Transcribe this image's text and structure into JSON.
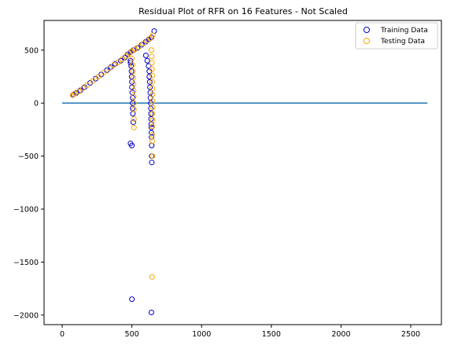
{
  "chart_data": {
    "type": "scatter",
    "title": "Residual Plot of RFR on 16 Features - Not Scaled",
    "xlabel": "",
    "ylabel": "",
    "xlim": [
      -130,
      2720
    ],
    "ylim": [
      -2090,
      780
    ],
    "xticks": [
      0,
      500,
      1000,
      1500,
      2000,
      2500
    ],
    "yticks": [
      500,
      0,
      -500,
      -1000,
      -1500,
      -2000
    ],
    "xtick_labels": [
      "0",
      "500",
      "1000",
      "1500",
      "2000",
      "2500"
    ],
    "ytick_labels": [
      "500",
      "0",
      "−500",
      "−1000",
      "−1500",
      "−2000"
    ],
    "grid": false,
    "legend_position": "top-right",
    "hline": {
      "y": 0,
      "x_from": 0,
      "x_to": 2620,
      "color": "#1f77b4"
    },
    "series": [
      {
        "name": "Training Data",
        "color": "#0000cc",
        "marker": "open-circle",
        "points": [
          [
            80,
            80
          ],
          [
            100,
            95
          ],
          [
            130,
            120
          ],
          [
            160,
            150
          ],
          [
            200,
            190
          ],
          [
            240,
            230
          ],
          [
            280,
            270
          ],
          [
            320,
            310
          ],
          [
            350,
            340
          ],
          [
            380,
            370
          ],
          [
            420,
            400
          ],
          [
            450,
            430
          ],
          [
            470,
            460
          ],
          [
            490,
            480
          ],
          [
            510,
            500
          ],
          [
            540,
            520
          ],
          [
            570,
            550
          ],
          [
            600,
            580
          ],
          [
            620,
            600
          ],
          [
            640,
            620
          ],
          [
            660,
            680
          ],
          [
            490,
            400
          ],
          [
            490,
            380
          ],
          [
            495,
            350
          ],
          [
            497,
            300
          ],
          [
            498,
            250
          ],
          [
            500,
            200
          ],
          [
            500,
            150
          ],
          [
            503,
            100
          ],
          [
            505,
            50
          ],
          [
            505,
            0
          ],
          [
            505,
            -50
          ],
          [
            507,
            -100
          ],
          [
            510,
            -180
          ],
          [
            490,
            -380
          ],
          [
            500,
            -400
          ],
          [
            600,
            450
          ],
          [
            610,
            400
          ],
          [
            620,
            350
          ],
          [
            625,
            300
          ],
          [
            625,
            250
          ],
          [
            628,
            200
          ],
          [
            630,
            150
          ],
          [
            632,
            100
          ],
          [
            633,
            50
          ],
          [
            635,
            0
          ],
          [
            636,
            -50
          ],
          [
            637,
            -100
          ],
          [
            638,
            -150
          ],
          [
            639,
            -200
          ],
          [
            640,
            -230
          ],
          [
            640,
            -280
          ],
          [
            641,
            -320
          ],
          [
            642,
            -400
          ],
          [
            642,
            -500
          ],
          [
            643,
            -560
          ],
          [
            500,
            -1850
          ],
          [
            640,
            -1975
          ]
        ]
      },
      {
        "name": "Testing Data",
        "color": "#ffa500",
        "marker": "open-circle",
        "points": [
          [
            75,
            75
          ],
          [
            90,
            90
          ],
          [
            120,
            110
          ],
          [
            150,
            140
          ],
          [
            180,
            170
          ],
          [
            220,
            210
          ],
          [
            260,
            250
          ],
          [
            300,
            290
          ],
          [
            340,
            330
          ],
          [
            370,
            360
          ],
          [
            400,
            385
          ],
          [
            430,
            415
          ],
          [
            460,
            445
          ],
          [
            480,
            470
          ],
          [
            500,
            490
          ],
          [
            520,
            505
          ],
          [
            550,
            530
          ],
          [
            580,
            560
          ],
          [
            610,
            590
          ],
          [
            630,
            610
          ],
          [
            650,
            640
          ],
          [
            500,
            420
          ],
          [
            505,
            360
          ],
          [
            508,
            300
          ],
          [
            510,
            240
          ],
          [
            512,
            180
          ],
          [
            512,
            120
          ],
          [
            513,
            60
          ],
          [
            514,
            0
          ],
          [
            515,
            -60
          ],
          [
            515,
            -150
          ],
          [
            515,
            -230
          ],
          [
            640,
            500
          ],
          [
            642,
            440
          ],
          [
            644,
            380
          ],
          [
            645,
            320
          ],
          [
            646,
            260
          ],
          [
            646,
            200
          ],
          [
            647,
            140
          ],
          [
            647,
            80
          ],
          [
            648,
            20
          ],
          [
            648,
            -40
          ],
          [
            648,
            -100
          ],
          [
            648,
            -160
          ],
          [
            646,
            -220
          ],
          [
            645,
            -300
          ],
          [
            646,
            -360
          ],
          [
            647,
            -500
          ],
          [
            645,
            -1640
          ]
        ]
      }
    ]
  }
}
